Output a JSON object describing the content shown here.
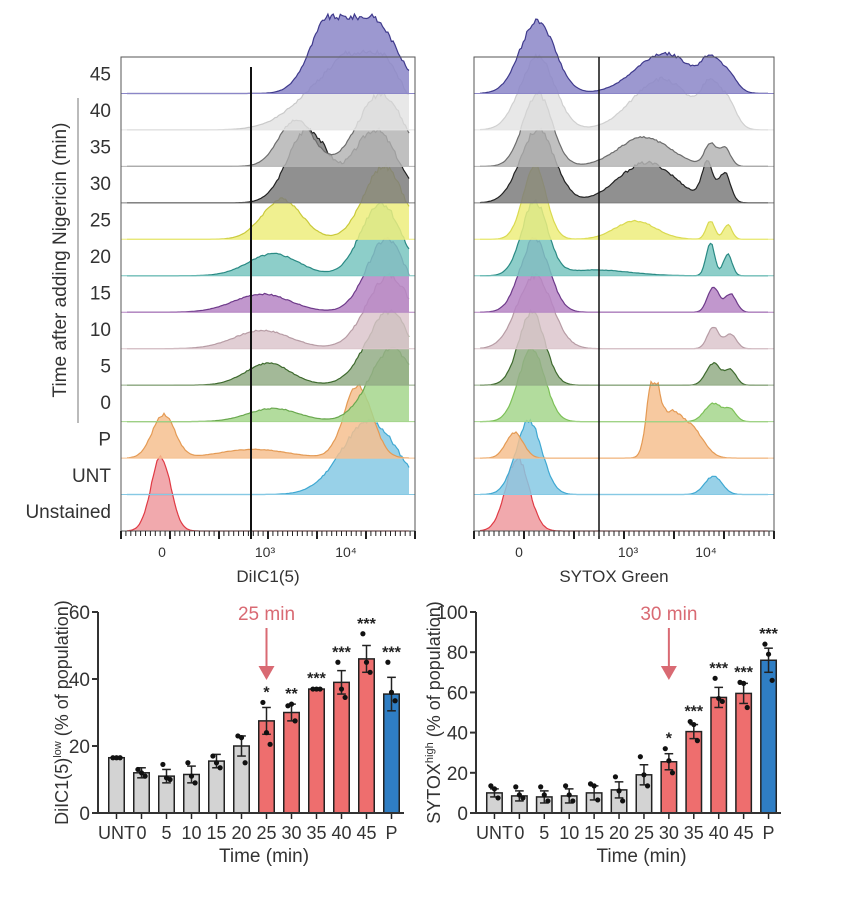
{
  "chart_data": [
    {
      "type": "histogram-overlay",
      "id": "dilc1",
      "title": "",
      "xlabel": "DiIC1(5)",
      "ylabel": "Time after adding Nigericin (min)",
      "x_scale": "biexponential",
      "x_tick_labels": [
        "0",
        "10³",
        "10⁴"
      ],
      "gate_position_label": "between 10² and 10³",
      "row_labels": [
        "45",
        "40",
        "35",
        "30",
        "25",
        "20",
        "15",
        "10",
        "5",
        "0",
        "P",
        "UNT",
        "Unstained"
      ],
      "bracketed_rows": [
        "45",
        "40",
        "35",
        "30",
        "25",
        "20",
        "15",
        "10",
        "5",
        "0"
      ],
      "series": [
        {
          "name": "45",
          "color": "#8b86c8",
          "edge": "#3f3a8c",
          "peaks": [
            {
              "x": 0.72,
              "h": 1.0,
              "w": 0.07
            },
            {
              "x": 0.88,
              "h": 0.95,
              "w": 0.08
            }
          ]
        },
        {
          "name": "40",
          "color": "#e4e4e4",
          "edge": "#c9c9c9",
          "peaks": [
            {
              "x": 0.72,
              "h": 0.6,
              "w": 0.12
            },
            {
              "x": 0.88,
              "h": 0.9,
              "w": 0.1
            }
          ]
        },
        {
          "name": "35",
          "color": "#b5b5b5",
          "edge": "#6d6d6d",
          "peaks": [
            {
              "x": 0.6,
              "h": 0.65,
              "w": 0.06
            },
            {
              "x": 0.9,
              "h": 1.0,
              "w": 0.08
            }
          ]
        },
        {
          "name": "30",
          "color": "#7d7d7d",
          "edge": "#222222",
          "peaks": [
            {
              "x": 0.64,
              "h": 1.0,
              "w": 0.07
            },
            {
              "x": 0.88,
              "h": 1.0,
              "w": 0.08
            }
          ]
        },
        {
          "name": "25",
          "color": "#eded7c",
          "edge": "#c9c93a",
          "peaks": [
            {
              "x": 0.55,
              "h": 0.55,
              "w": 0.07
            },
            {
              "x": 0.91,
              "h": 1.0,
              "w": 0.07
            }
          ]
        },
        {
          "name": "20",
          "color": "#79c6c0",
          "edge": "#2a8a84",
          "peaks": [
            {
              "x": 0.52,
              "h": 0.3,
              "w": 0.09
            },
            {
              "x": 0.9,
              "h": 1.0,
              "w": 0.07
            }
          ]
        },
        {
          "name": "15",
          "color": "#b685c4",
          "edge": "#6e3a8a",
          "peaks": [
            {
              "x": 0.48,
              "h": 0.25,
              "w": 0.1
            },
            {
              "x": 0.92,
              "h": 1.0,
              "w": 0.07
            }
          ]
        },
        {
          "name": "10",
          "color": "#dcc6cc",
          "edge": "#b79ca5",
          "peaks": [
            {
              "x": 0.48,
              "h": 0.25,
              "w": 0.1
            },
            {
              "x": 0.93,
              "h": 1.0,
              "w": 0.08
            }
          ]
        },
        {
          "name": "5",
          "color": "#93ad86",
          "edge": "#3e6a2e",
          "peaks": [
            {
              "x": 0.5,
              "h": 0.3,
              "w": 0.08
            },
            {
              "x": 0.93,
              "h": 1.0,
              "w": 0.08
            }
          ]
        },
        {
          "name": "0",
          "color": "#a5d68c",
          "edge": "#6aa84f",
          "peaks": [
            {
              "x": 0.52,
              "h": 0.18,
              "w": 0.09
            },
            {
              "x": 0.94,
              "h": 1.0,
              "w": 0.08
            }
          ]
        },
        {
          "name": "P",
          "color": "#f6c08f",
          "edge": "#e49a54",
          "peaks": [
            {
              "x": 0.13,
              "h": 0.6,
              "w": 0.04
            },
            {
              "x": 0.45,
              "h": 0.12,
              "w": 0.12
            },
            {
              "x": 0.82,
              "h": 1.0,
              "w": 0.05
            }
          ]
        },
        {
          "name": "UNT",
          "color": "#86c9e4",
          "edge": "#3fa8d2",
          "peaks": [
            {
              "x": 0.86,
              "h": 1.0,
              "w": 0.1
            }
          ]
        },
        {
          "name": "Unstained",
          "color": "#ee9a9f",
          "edge": "#e03a44",
          "peaks": [
            {
              "x": 0.12,
              "h": 1.0,
              "w": 0.035
            }
          ]
        }
      ]
    },
    {
      "type": "histogram-overlay",
      "id": "sytox",
      "title": "",
      "xlabel": "SYTOX Green",
      "ylabel": "",
      "x_scale": "biexponential",
      "x_tick_labels": [
        "0",
        "10³",
        "10⁴"
      ],
      "gate_position_label": "between 10² and 10³",
      "row_labels": [
        "45",
        "40",
        "35",
        "30",
        "25",
        "20",
        "15",
        "10",
        "5",
        "0",
        "P",
        "UNT",
        "Unstained"
      ],
      "series": [
        {
          "name": "45",
          "color": "#8b86c8",
          "edge": "#3f3a8c",
          "peaks": [
            {
              "x": 0.2,
              "h": 1.0,
              "w": 0.06
            },
            {
              "x": 0.64,
              "h": 0.55,
              "w": 0.1
            },
            {
              "x": 0.8,
              "h": 0.35,
              "w": 0.03
            },
            {
              "x": 0.86,
              "h": 0.25,
              "w": 0.03
            }
          ]
        },
        {
          "name": "40",
          "color": "#e4e4e4",
          "edge": "#d0d0d0",
          "peaks": [
            {
              "x": 0.2,
              "h": 1.0,
              "w": 0.06
            },
            {
              "x": 0.63,
              "h": 0.7,
              "w": 0.1
            },
            {
              "x": 0.8,
              "h": 0.5,
              "w": 0.03
            },
            {
              "x": 0.86,
              "h": 0.35,
              "w": 0.03
            }
          ]
        },
        {
          "name": "35",
          "color": "#b5b5b5",
          "edge": "#6d6d6d",
          "peaks": [
            {
              "x": 0.2,
              "h": 1.0,
              "w": 0.05
            },
            {
              "x": 0.57,
              "h": 0.4,
              "w": 0.09
            },
            {
              "x": 0.8,
              "h": 0.3,
              "w": 0.02
            },
            {
              "x": 0.85,
              "h": 0.25,
              "w": 0.02
            }
          ]
        },
        {
          "name": "30",
          "color": "#7d7d7d",
          "edge": "#222222",
          "peaks": [
            {
              "x": 0.2,
              "h": 1.0,
              "w": 0.06
            },
            {
              "x": 0.58,
              "h": 0.55,
              "w": 0.1
            },
            {
              "x": 0.79,
              "h": 0.5,
              "w": 0.02
            },
            {
              "x": 0.85,
              "h": 0.4,
              "w": 0.02
            }
          ]
        },
        {
          "name": "25",
          "color": "#eded7c",
          "edge": "#d9d950",
          "peaks": [
            {
              "x": 0.19,
              "h": 1.0,
              "w": 0.04
            },
            {
              "x": 0.54,
              "h": 0.25,
              "w": 0.07
            },
            {
              "x": 0.8,
              "h": 0.25,
              "w": 0.015
            },
            {
              "x": 0.86,
              "h": 0.2,
              "w": 0.015
            }
          ]
        },
        {
          "name": "20",
          "color": "#79c6c0",
          "edge": "#2a8a84",
          "peaks": [
            {
              "x": 0.19,
              "h": 1.0,
              "w": 0.045
            },
            {
              "x": 0.4,
              "h": 0.08,
              "w": 0.12
            },
            {
              "x": 0.8,
              "h": 0.45,
              "w": 0.015
            },
            {
              "x": 0.86,
              "h": 0.3,
              "w": 0.015
            }
          ]
        },
        {
          "name": "15",
          "color": "#b685c4",
          "edge": "#6e3a8a",
          "peaks": [
            {
              "x": 0.19,
              "h": 1.0,
              "w": 0.05
            },
            {
              "x": 0.81,
              "h": 0.35,
              "w": 0.02
            },
            {
              "x": 0.87,
              "h": 0.25,
              "w": 0.02
            }
          ]
        },
        {
          "name": "10",
          "color": "#dcc6cc",
          "edge": "#b79ca5",
          "peaks": [
            {
              "x": 0.19,
              "h": 1.0,
              "w": 0.06
            },
            {
              "x": 0.81,
              "h": 0.3,
              "w": 0.02
            },
            {
              "x": 0.87,
              "h": 0.2,
              "w": 0.02
            }
          ]
        },
        {
          "name": "5",
          "color": "#93ad86",
          "edge": "#3e6a2e",
          "peaks": [
            {
              "x": 0.18,
              "h": 1.0,
              "w": 0.045
            },
            {
              "x": 0.81,
              "h": 0.3,
              "w": 0.025
            },
            {
              "x": 0.87,
              "h": 0.2,
              "w": 0.02
            }
          ]
        },
        {
          "name": "0",
          "color": "#a5d68c",
          "edge": "#7cc057",
          "peaks": [
            {
              "x": 0.18,
              "h": 1.0,
              "w": 0.045
            },
            {
              "x": 0.81,
              "h": 0.25,
              "w": 0.03
            },
            {
              "x": 0.87,
              "h": 0.15,
              "w": 0.02
            }
          ]
        },
        {
          "name": "P",
          "color": "#f6c08f",
          "edge": "#e49a54",
          "peaks": [
            {
              "x": 0.12,
              "h": 0.35,
              "w": 0.03
            },
            {
              "x": 0.6,
              "h": 1.0,
              "w": 0.02
            },
            {
              "x": 0.66,
              "h": 0.6,
              "w": 0.04
            },
            {
              "x": 0.74,
              "h": 0.35,
              "w": 0.04
            }
          ]
        },
        {
          "name": "UNT",
          "color": "#86c9e4",
          "edge": "#3fa8d2",
          "peaks": [
            {
              "x": 0.17,
              "h": 1.0,
              "w": 0.045
            },
            {
              "x": 0.81,
              "h": 0.25,
              "w": 0.03
            }
          ]
        },
        {
          "name": "Unstained",
          "color": "#ee9a9f",
          "edge": "#e03a44",
          "peaks": [
            {
              "x": 0.13,
              "h": 1.0,
              "w": 0.04
            }
          ]
        }
      ]
    },
    {
      "type": "bar",
      "id": "dilc1-bar",
      "title": "",
      "xlabel": "Time (min)",
      "ylabel_main": "DiIC1(5)",
      "ylabel_sup": "low",
      "ylabel_rest": " (% of population)",
      "ylim": [
        0,
        60
      ],
      "yticks": [
        0,
        20,
        40,
        60
      ],
      "categories": [
        "UNT",
        "0",
        "5",
        "10",
        "15",
        "20",
        "25",
        "30",
        "35",
        "40",
        "45",
        "P"
      ],
      "values": [
        16.5,
        12,
        11,
        11.5,
        15.5,
        20,
        27.5,
        30,
        37,
        39,
        46,
        35.5
      ],
      "errors": [
        0.3,
        1.5,
        2,
        2.5,
        2,
        3,
        4,
        2.5,
        0.2,
        3.5,
        4,
        5
      ],
      "points": [
        [
          16.5,
          16.5,
          16.5
        ],
        [
          13,
          12,
          11
        ],
        [
          14.5,
          10.5,
          10
        ],
        [
          15,
          11,
          9
        ],
        [
          17,
          15,
          13.5
        ],
        [
          23,
          22.5,
          15
        ],
        [
          33,
          24,
          20.5
        ],
        [
          32,
          32.5,
          27.5
        ],
        [
          37,
          37,
          37
        ],
        [
          45,
          37,
          34.5
        ],
        [
          53.5,
          45,
          42
        ],
        [
          45,
          36,
          33.5
        ]
      ],
      "significance": [
        "",
        "",
        "",
        "",
        "",
        "",
        "*",
        "**",
        "***",
        "***",
        "***",
        "***"
      ],
      "bar_colors": [
        "#d3d3d3",
        "#d3d3d3",
        "#d3d3d3",
        "#d3d3d3",
        "#d3d3d3",
        "#d3d3d3",
        "#ee6e6e",
        "#ee6e6e",
        "#ee6e6e",
        "#ee6e6e",
        "#ee6e6e",
        "#2f7ec4"
      ],
      "annotation": {
        "label": "25 min",
        "category": "25",
        "color": "#d96a73"
      }
    },
    {
      "type": "bar",
      "id": "sytox-bar",
      "title": "",
      "xlabel": "Time (min)",
      "ylabel_main": "SYTOX",
      "ylabel_sup": "high",
      "ylabel_rest": " (% of population)",
      "ylim": [
        0,
        100
      ],
      "yticks": [
        0,
        20,
        40,
        60,
        80,
        100
      ],
      "categories": [
        "UNT",
        "0",
        "5",
        "10",
        "15",
        "20",
        "25",
        "30",
        "35",
        "40",
        "45",
        "P"
      ],
      "values": [
        10,
        8.5,
        8,
        8.5,
        10,
        11.5,
        19,
        25.5,
        40.5,
        57.5,
        59.5,
        76
      ],
      "errors": [
        2,
        2.5,
        3,
        3.5,
        3.5,
        4,
        5,
        4,
        3.5,
        5,
        5,
        6
      ],
      "points": [
        [
          13.5,
          12,
          7.5
        ],
        [
          13,
          9,
          7.5
        ],
        [
          13,
          9,
          6
        ],
        [
          13.5,
          9,
          6
        ],
        [
          14.5,
          13.5,
          6.5
        ],
        [
          18,
          11,
          6
        ],
        [
          28,
          19,
          13.5
        ],
        [
          32,
          26,
          20
        ],
        [
          45.5,
          44,
          36
        ],
        [
          67,
          57,
          55.5
        ],
        [
          65,
          64.5,
          52.5
        ],
        [
          84,
          79,
          66
        ]
      ],
      "significance": [
        "",
        "",
        "",
        "",
        "",
        "",
        "",
        "*",
        "***",
        "***",
        "***",
        "***"
      ],
      "bar_colors": [
        "#d3d3d3",
        "#d3d3d3",
        "#d3d3d3",
        "#d3d3d3",
        "#d3d3d3",
        "#d3d3d3",
        "#d3d3d3",
        "#ee6e6e",
        "#ee6e6e",
        "#ee6e6e",
        "#ee6e6e",
        "#2f7ec4"
      ],
      "annotation": {
        "label": "30 min",
        "category": "30",
        "color": "#d96a73"
      }
    }
  ]
}
